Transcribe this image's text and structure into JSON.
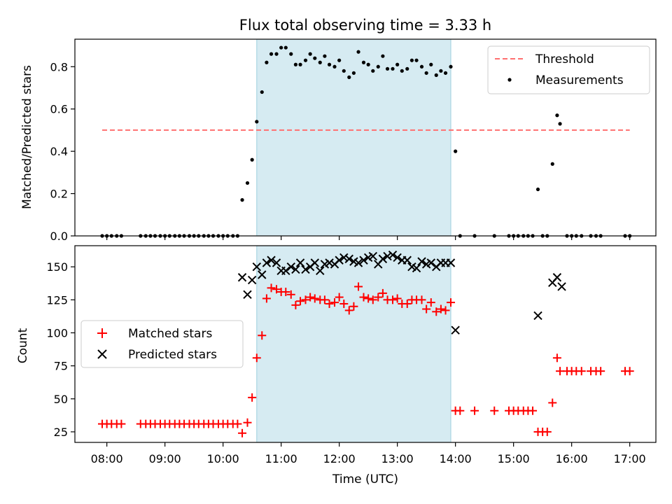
{
  "chart_data": [
    {
      "type": "scatter",
      "title": "Flux total observing time = 3.33 h",
      "ylabel": "Matched/Predicted stars",
      "xlabel": "",
      "xlim": [
        7.45,
        17.45
      ],
      "ylim": [
        0,
        0.93
      ],
      "yticks": [
        0.0,
        0.2,
        0.4,
        0.6,
        0.8
      ],
      "ytick_labels": [
        "0.0",
        "0.2",
        "0.4",
        "0.6",
        "0.8"
      ],
      "highlight_span": [
        10.58,
        13.92
      ],
      "threshold": {
        "name": "Threshold",
        "value": 0.5,
        "x_range": [
          7.92,
          17.0
        ],
        "color": "#ff7070"
      },
      "legend": [
        "Threshold",
        "Measurements"
      ],
      "legend_position": "top-right",
      "series": [
        {
          "name": "Measurements",
          "color": "#000000",
          "x": [
            7.92,
            8.0,
            8.08,
            8.17,
            8.25,
            8.58,
            8.67,
            8.75,
            8.83,
            8.92,
            9.0,
            9.08,
            9.17,
            9.25,
            9.33,
            9.42,
            9.5,
            9.58,
            9.67,
            9.75,
            9.83,
            9.92,
            10.0,
            10.08,
            10.17,
            10.25,
            10.33,
            10.42,
            10.5,
            10.58,
            10.67,
            10.75,
            10.83,
            10.92,
            11.0,
            11.08,
            11.17,
            11.25,
            11.33,
            11.42,
            11.5,
            11.58,
            11.67,
            11.75,
            11.83,
            11.92,
            12.0,
            12.08,
            12.17,
            12.25,
            12.33,
            12.42,
            12.5,
            12.58,
            12.67,
            12.75,
            12.83,
            12.92,
            13.0,
            13.08,
            13.17,
            13.25,
            13.33,
            13.42,
            13.5,
            13.58,
            13.67,
            13.75,
            13.83,
            13.92,
            14.0,
            14.08,
            14.33,
            14.67,
            14.92,
            15.0,
            15.08,
            15.17,
            15.25,
            15.33,
            15.42,
            15.5,
            15.58,
            15.67,
            15.75,
            15.8,
            15.92,
            16.0,
            16.08,
            16.17,
            16.33,
            16.42,
            16.5,
            16.92,
            17.0
          ],
          "y": [
            0,
            0,
            0,
            0,
            0,
            0,
            0,
            0,
            0,
            0,
            0,
            0,
            0,
            0,
            0,
            0,
            0,
            0,
            0,
            0,
            0,
            0,
            0,
            0,
            0,
            0,
            0.17,
            0.25,
            0.36,
            0.54,
            0.68,
            0.82,
            0.86,
            0.86,
            0.89,
            0.89,
            0.86,
            0.81,
            0.81,
            0.83,
            0.86,
            0.84,
            0.82,
            0.85,
            0.81,
            0.8,
            0.83,
            0.78,
            0.75,
            0.77,
            0.87,
            0.82,
            0.81,
            0.78,
            0.8,
            0.85,
            0.79,
            0.79,
            0.81,
            0.78,
            0.79,
            0.83,
            0.83,
            0.8,
            0.77,
            0.81,
            0.76,
            0.78,
            0.77,
            0.8,
            0.4,
            0,
            0,
            0,
            0,
            0,
            0,
            0,
            0,
            0,
            0.22,
            0,
            0,
            0.34,
            0.57,
            0.53,
            0,
            0,
            0,
            0,
            0,
            0,
            0,
            0,
            0
          ]
        }
      ]
    },
    {
      "type": "scatter",
      "title": "",
      "xlabel": "Time (UTC)",
      "ylabel": "Count",
      "xlim": [
        7.45,
        17.45
      ],
      "ylim": [
        17,
        166
      ],
      "xticks": [
        8,
        9,
        10,
        11,
        12,
        13,
        14,
        15,
        16,
        17
      ],
      "xtick_labels": [
        "08:00",
        "09:00",
        "10:00",
        "11:00",
        "12:00",
        "13:00",
        "14:00",
        "15:00",
        "16:00",
        "17:00"
      ],
      "yticks": [
        25,
        50,
        75,
        100,
        125,
        150
      ],
      "ytick_labels": [
        "25",
        "50",
        "75",
        "100",
        "125",
        "150"
      ],
      "highlight_span": [
        10.58,
        13.92
      ],
      "legend": [
        "Matched stars",
        "Predicted stars"
      ],
      "legend_position": "center-left",
      "series": [
        {
          "name": "Matched stars",
          "marker": "+",
          "color": "#ff0000",
          "x": [
            7.92,
            8.0,
            8.08,
            8.17,
            8.25,
            8.58,
            8.67,
            8.75,
            8.83,
            8.92,
            9.0,
            9.08,
            9.17,
            9.25,
            9.33,
            9.42,
            9.5,
            9.58,
            9.67,
            9.75,
            9.83,
            9.92,
            10.0,
            10.08,
            10.17,
            10.25,
            10.33,
            10.42,
            10.5,
            10.58,
            10.67,
            10.75,
            10.83,
            10.92,
            11.0,
            11.08,
            11.17,
            11.25,
            11.33,
            11.42,
            11.5,
            11.58,
            11.67,
            11.75,
            11.83,
            11.92,
            12.0,
            12.08,
            12.17,
            12.25,
            12.33,
            12.42,
            12.5,
            12.58,
            12.67,
            12.75,
            12.83,
            12.92,
            13.0,
            13.08,
            13.17,
            13.25,
            13.33,
            13.42,
            13.5,
            13.58,
            13.67,
            13.75,
            13.83,
            13.92,
            14.0,
            14.08,
            14.33,
            14.67,
            14.92,
            15.0,
            15.08,
            15.17,
            15.25,
            15.33,
            15.42,
            15.5,
            15.58,
            15.67,
            15.75,
            15.8,
            15.92,
            16.0,
            16.08,
            16.17,
            16.33,
            16.42,
            16.5,
            16.92,
            17.0
          ],
          "y": [
            31,
            31,
            31,
            31,
            31,
            31,
            31,
            31,
            31,
            31,
            31,
            31,
            31,
            31,
            31,
            31,
            31,
            31,
            31,
            31,
            31,
            31,
            31,
            31,
            31,
            31,
            24,
            32,
            51,
            81,
            98,
            126,
            134,
            133,
            131,
            131,
            129,
            121,
            124,
            125,
            127,
            126,
            125,
            125,
            122,
            123,
            127,
            122,
            117,
            120,
            135,
            127,
            126,
            125,
            127,
            130,
            125,
            125,
            126,
            122,
            122,
            125,
            125,
            125,
            118,
            123,
            116,
            118,
            117,
            123,
            41,
            41,
            41,
            41,
            41,
            41,
            41,
            41,
            41,
            41,
            25,
            25,
            25,
            47,
            81,
            71,
            71,
            71,
            71,
            71,
            71,
            71,
            71,
            71,
            71
          ]
        },
        {
          "name": "Predicted stars",
          "marker": "x",
          "color": "#000000",
          "x": [
            10.33,
            10.42,
            10.5,
            10.58,
            10.67,
            10.75,
            10.83,
            10.92,
            11.0,
            11.08,
            11.17,
            11.25,
            11.33,
            11.42,
            11.5,
            11.58,
            11.67,
            11.75,
            11.83,
            11.92,
            12.0,
            12.08,
            12.17,
            12.25,
            12.33,
            12.42,
            12.5,
            12.58,
            12.67,
            12.75,
            12.83,
            12.92,
            13.0,
            13.08,
            13.17,
            13.25,
            13.33,
            13.42,
            13.5,
            13.58,
            13.67,
            13.75,
            13.83,
            13.92,
            14.0,
            15.42,
            15.67,
            15.75,
            15.83
          ],
          "y": [
            142,
            129,
            140,
            150,
            144,
            153,
            155,
            153,
            147,
            147,
            150,
            148,
            153,
            148,
            150,
            153,
            147,
            152,
            153,
            152,
            155,
            157,
            156,
            154,
            153,
            155,
            157,
            158,
            152,
            156,
            158,
            159,
            157,
            155,
            155,
            150,
            149,
            154,
            152,
            153,
            150,
            153,
            153,
            153,
            102,
            113,
            138,
            142,
            135
          ]
        }
      ]
    }
  ]
}
